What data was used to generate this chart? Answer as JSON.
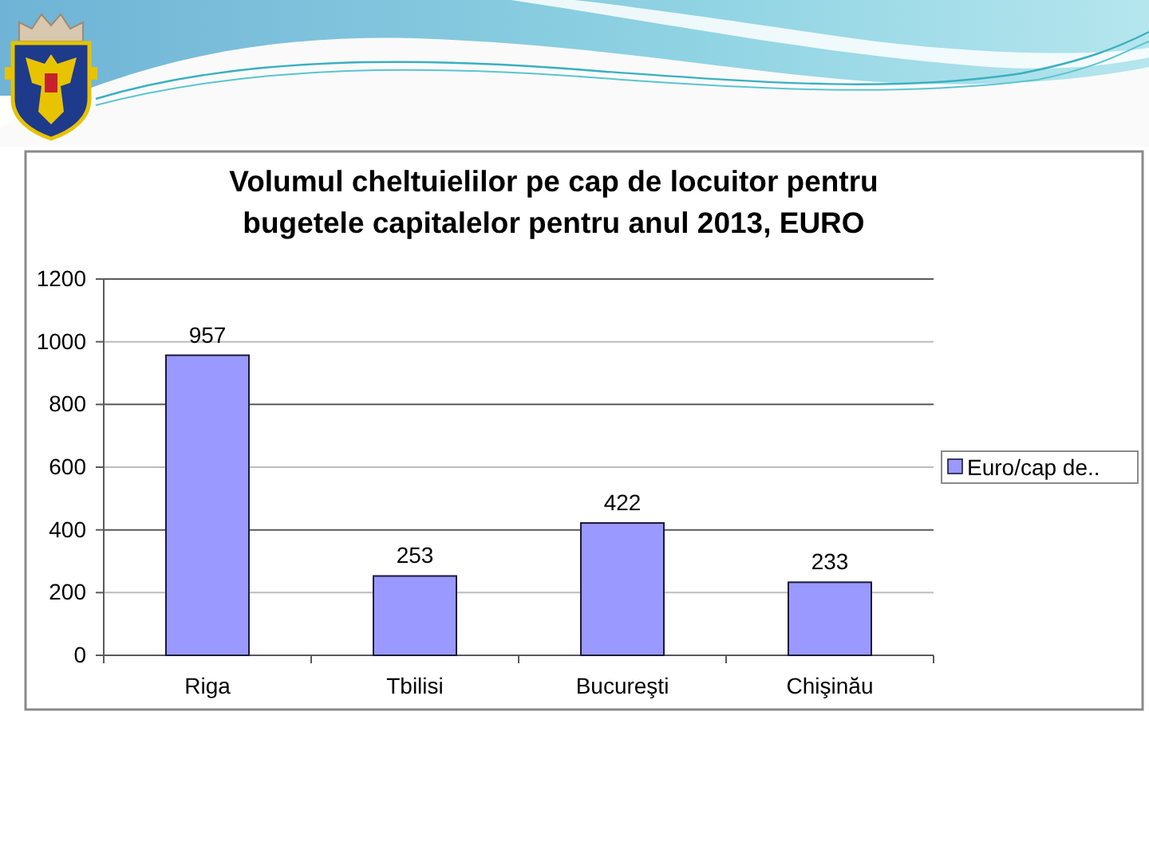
{
  "chart_data": {
    "type": "bar",
    "title": "Volumul cheltuielilor pe cap de locuitor pentru bugetele capitalelor pentru anul 2013, EURO",
    "categories": [
      "Riga",
      "Tbilisi",
      "Bucureşti",
      "Chişinău"
    ],
    "series": [
      {
        "name": "Euro/cap de..",
        "color": "#9999ff",
        "values": [
          957,
          253,
          422,
          233
        ]
      }
    ],
    "ylim": [
      0,
      1200
    ],
    "yticks": [
      0,
      200,
      400,
      600,
      800,
      1000,
      1200
    ],
    "grid": "y",
    "legend": "right",
    "data_labels": true
  }
}
